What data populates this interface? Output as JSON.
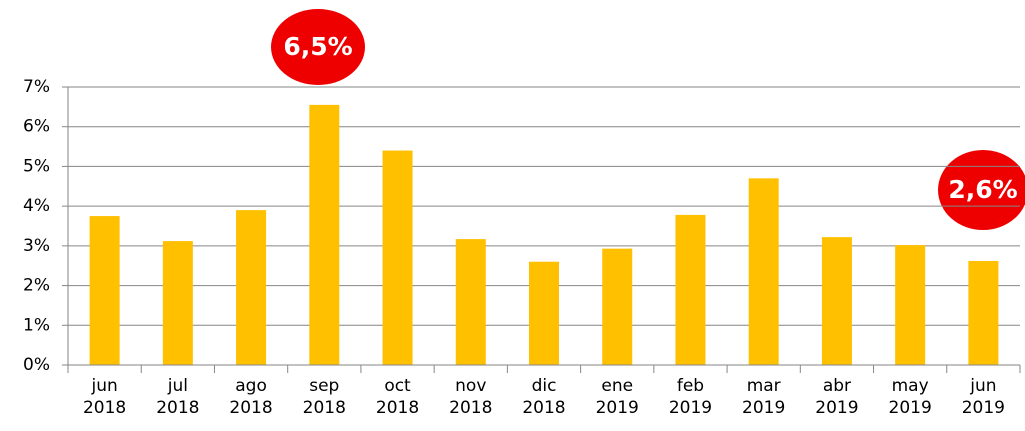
{
  "chart_data": {
    "type": "bar",
    "categories": [
      "jun 2018",
      "jul 2018",
      "ago 2018",
      "sep 2018",
      "oct 2018",
      "nov 2018",
      "dic 2018",
      "ene 2019",
      "feb 2019",
      "mar 2019",
      "abr 2019",
      "may 2019",
      "jun 2019"
    ],
    "values": [
      3.75,
      3.12,
      3.9,
      6.55,
      5.4,
      3.17,
      2.6,
      2.93,
      3.78,
      4.7,
      3.22,
      3.02,
      2.62
    ],
    "color": "#ffc000",
    "ylim": [
      0,
      7
    ],
    "yticks": [
      {
        "value": 0,
        "label": "0%"
      },
      {
        "value": 1,
        "label": "1%"
      },
      {
        "value": 2,
        "label": "2%"
      },
      {
        "value": 3,
        "label": "3%"
      },
      {
        "value": 4,
        "label": "4%"
      },
      {
        "value": 5,
        "label": "5%"
      },
      {
        "value": 6,
        "label": "6%"
      },
      {
        "value": 7,
        "label": "7%"
      }
    ],
    "grid": true,
    "annotations": [
      {
        "text": "6,5%"
      },
      {
        "text": "2,6%"
      }
    ]
  }
}
